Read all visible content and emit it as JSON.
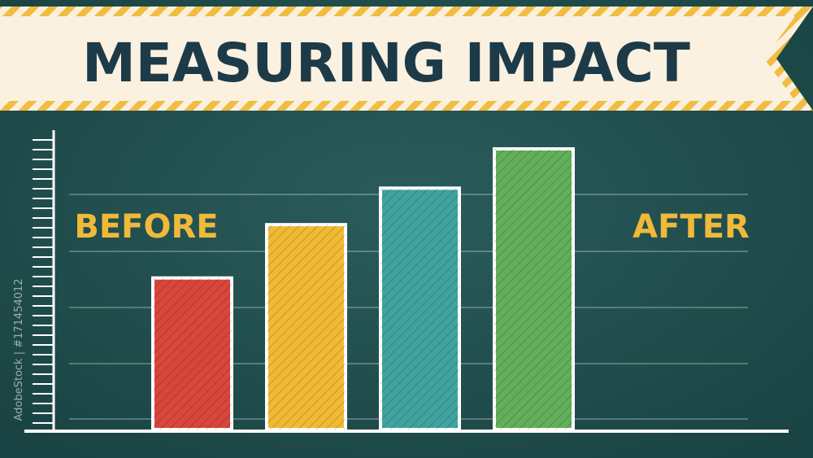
{
  "chart_data": {
    "type": "bar",
    "title": "MEASURING IMPACT",
    "categories": [
      null,
      null,
      null,
      null
    ],
    "values": [
      2.7,
      3.65,
      4.3,
      5.0
    ],
    "colors": [
      "#d8463c",
      "#f2b935",
      "#40a3a0",
      "#62ae5a"
    ],
    "ylim": [
      0,
      5.3
    ],
    "annotations": [
      "BEFORE",
      "AFTER"
    ],
    "watermark": "AdobeStock | #171454012"
  }
}
